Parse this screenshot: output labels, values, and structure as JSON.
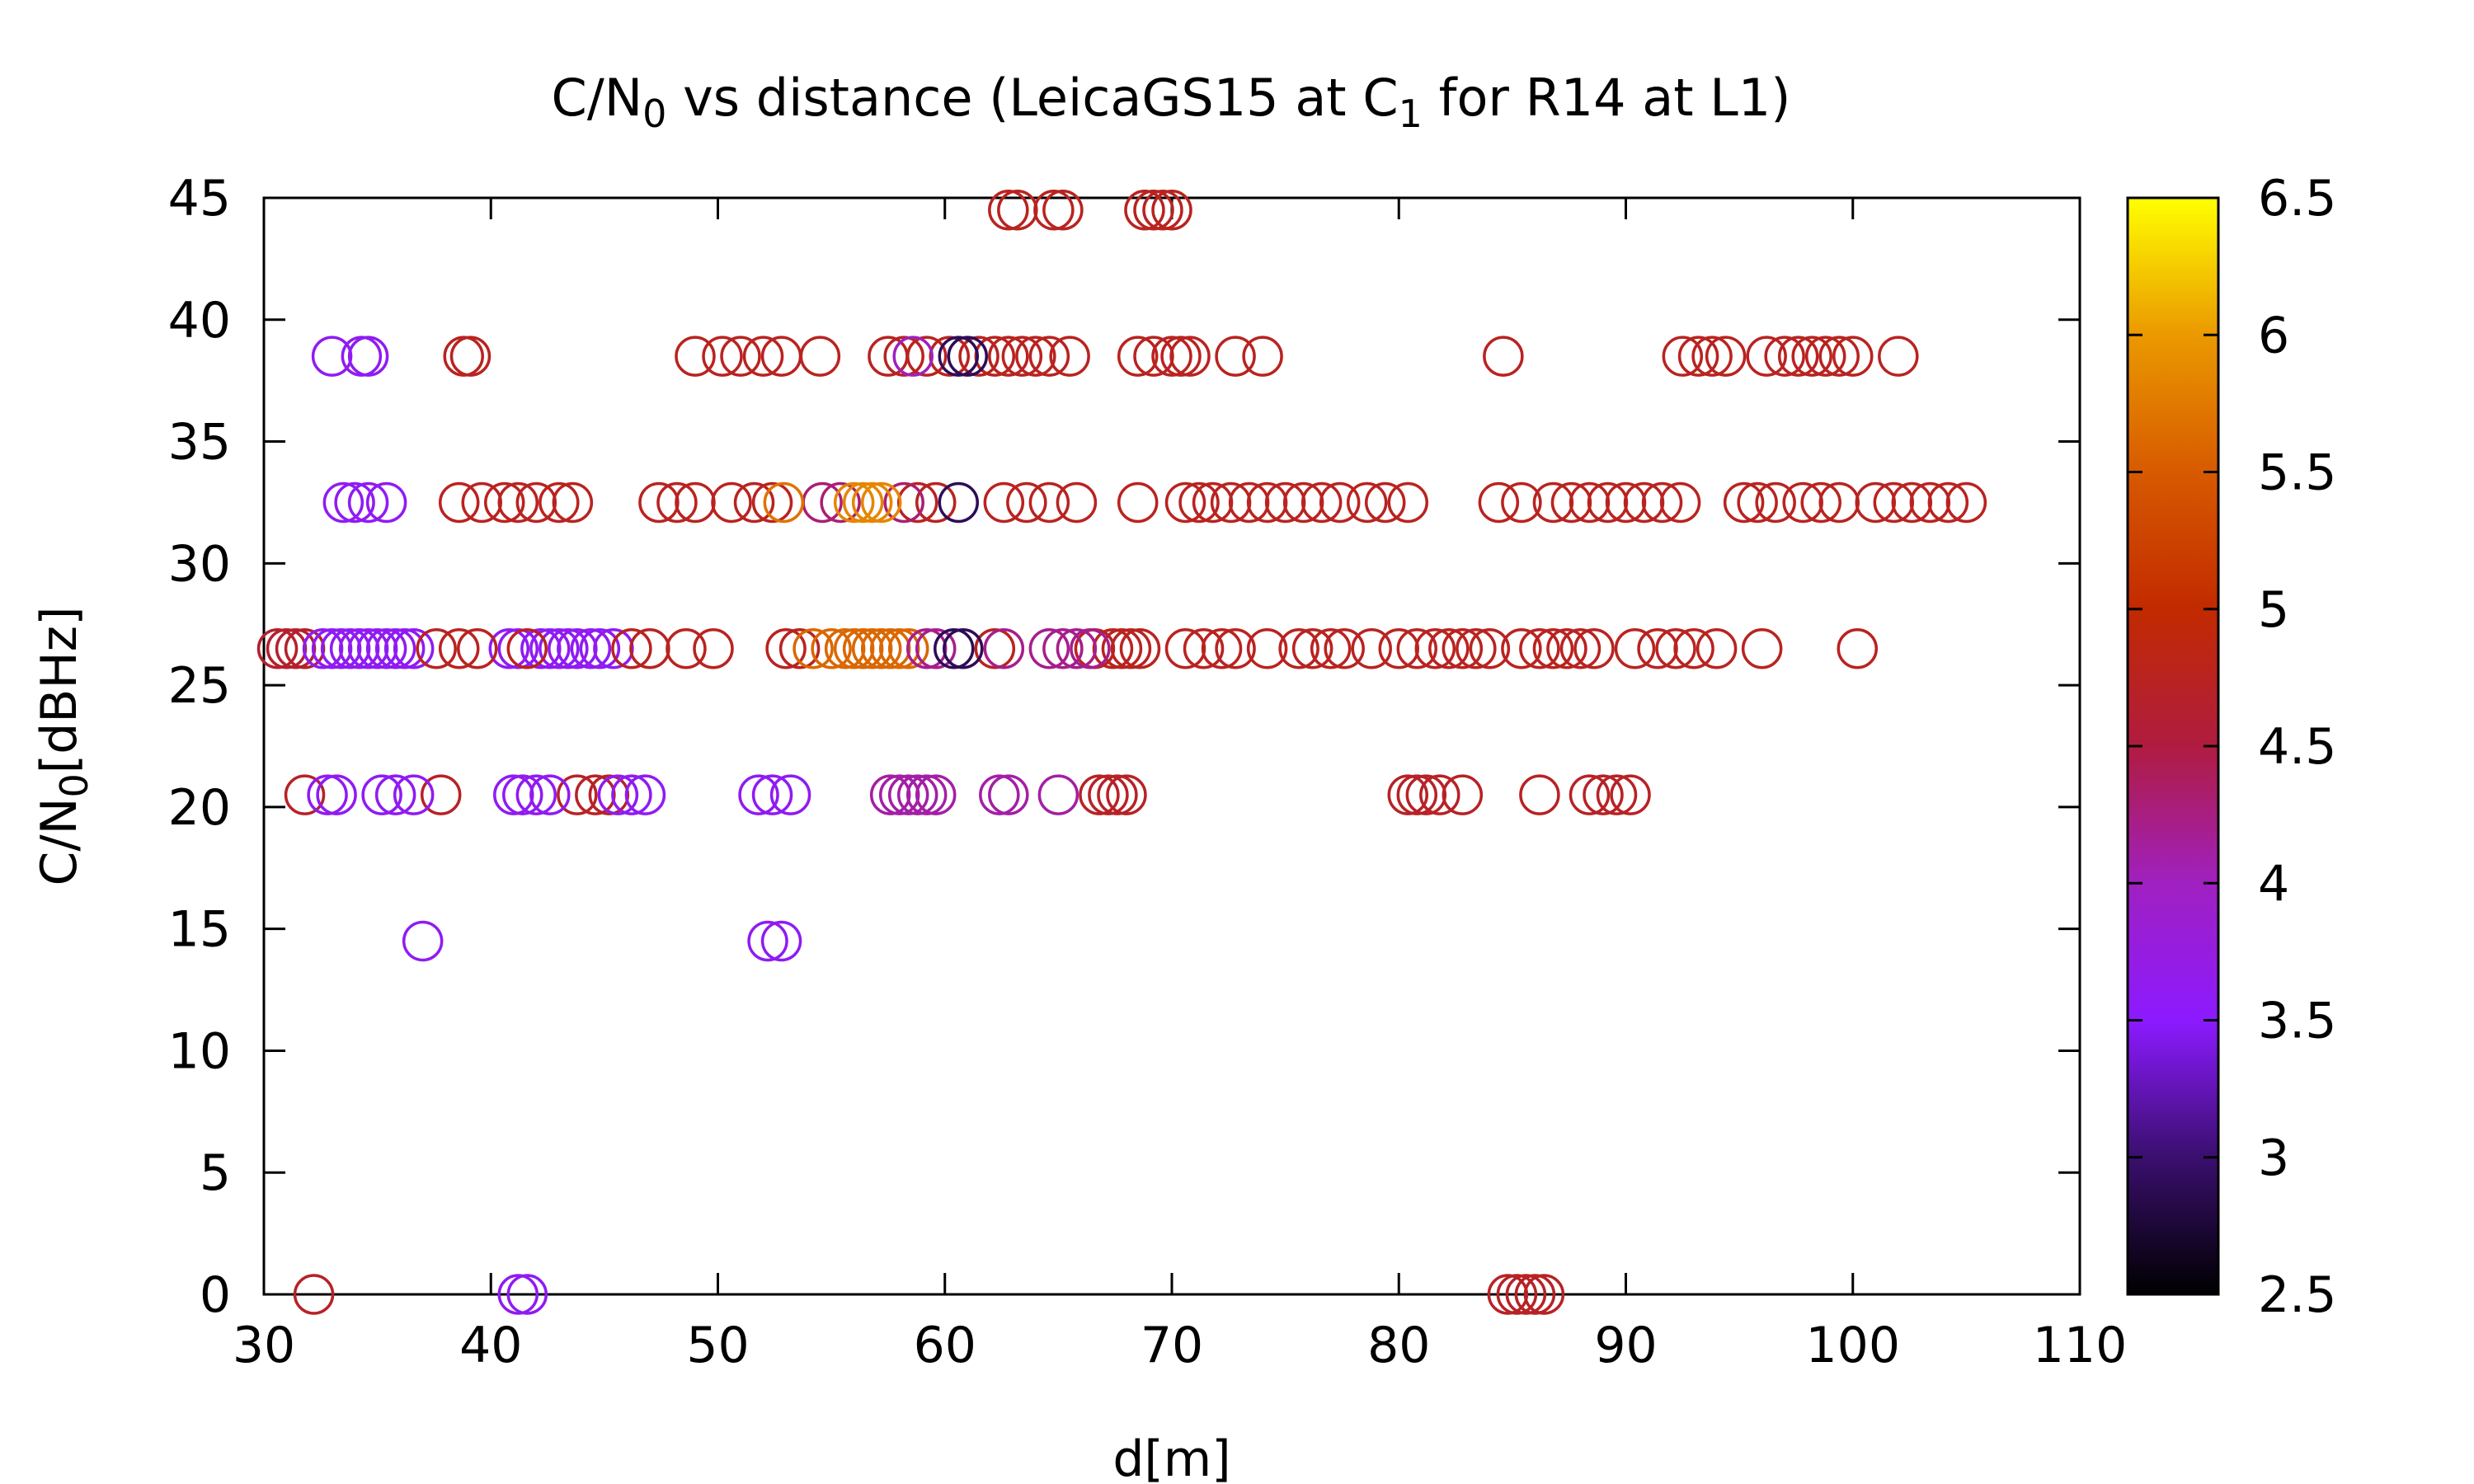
{
  "chart_data": {
    "type": "scatter",
    "title": "C/N",
    "title_sub": "0",
    "title_rest": " vs distance (LeicaGS15 at C",
    "title_sub2": "1",
    "title_rest2": " for R14 at L1)",
    "xlabel": "d[m]",
    "ylabel": "C/N",
    "ylabel_sub": "0",
    "ylabel_rest": "[dBHz]",
    "xlim": [
      30,
      110
    ],
    "ylim": [
      0,
      45
    ],
    "xticks": [
      "30",
      "40",
      "50",
      "60",
      "70",
      "80",
      "90",
      "100",
      "110"
    ],
    "yticks": [
      "0",
      "5",
      "10",
      "15",
      "20",
      "25",
      "30",
      "35",
      "40",
      "45"
    ],
    "colorbar": {
      "range": [
        2.5,
        6.5
      ],
      "ticks": [
        "2.5",
        "3",
        "3.5",
        "4",
        "4.5",
        "5",
        "5.5",
        "6",
        "6.5"
      ],
      "palette": "black-purple-red-orange-yellow"
    },
    "marker": "open-circle",
    "grid": false,
    "clusters": [
      {
        "y": 44.5,
        "c": 4.75,
        "x": [
          62.8,
          63.2,
          64.8,
          65.2,
          68.8,
          69.2,
          69.6,
          70.0
        ]
      },
      {
        "y": 38.5,
        "c": 3.6,
        "x": [
          33.0,
          34.3,
          34.6
        ]
      },
      {
        "y": 38.5,
        "c": 4.75,
        "x": [
          38.8,
          39.1,
          49.0,
          50.2,
          51.0,
          52.0,
          52.8,
          54.5,
          57.5,
          58.2,
          59.2,
          60.2,
          61.5,
          62.2,
          62.8,
          63.4,
          64.0,
          64.6,
          65.5,
          68.5,
          69.2,
          70.0,
          70.4,
          70.8,
          72.8,
          74.0,
          84.6,
          92.5,
          93.2,
          93.8,
          94.4,
          96.2,
          97.0,
          97.6,
          98.2,
          98.8,
          99.4,
          100.0,
          102.0
        ]
      },
      {
        "y": 38.5,
        "c": 4.0,
        "x": [
          58.6
        ]
      },
      {
        "y": 38.5,
        "c": 2.9,
        "x": [
          60.6,
          61.0
        ]
      },
      {
        "y": 32.5,
        "c": 3.6,
        "x": [
          33.5,
          34.0,
          34.6,
          35.4
        ]
      },
      {
        "y": 32.5,
        "c": 4.75,
        "x": [
          38.6,
          39.6,
          40.6,
          41.2,
          42.0,
          43.0,
          43.6,
          47.4,
          48.2,
          49.0,
          50.6,
          51.6,
          52.4,
          58.8,
          59.6,
          62.6,
          63.6,
          64.6,
          65.8,
          68.5,
          70.6,
          71.2,
          71.8,
          72.6,
          73.4,
          74.2,
          75.0,
          75.8,
          76.6,
          77.4,
          78.6,
          79.4,
          80.4,
          84.4,
          85.4,
          86.8,
          87.6,
          88.4,
          89.2,
          90.0,
          90.8,
          91.6,
          92.4,
          95.2,
          95.8,
          96.6,
          97.8,
          98.6,
          99.4,
          101.0,
          101.8,
          102.6,
          103.4,
          104.2,
          105.0
        ]
      },
      {
        "y": 32.5,
        "c": 4.3,
        "x": [
          54.6,
          55.4,
          58.2
        ]
      },
      {
        "y": 32.5,
        "c": 5.85,
        "x": [
          56.0,
          56.4,
          56.8,
          57.2
        ]
      },
      {
        "y": 32.5,
        "c": 2.9,
        "x": [
          60.6
        ]
      },
      {
        "y": 32.5,
        "c": 5.7,
        "x": [
          52.9
        ]
      },
      {
        "y": 26.5,
        "c": 4.65,
        "x": [
          30.6,
          31.0,
          31.4,
          31.8
        ]
      },
      {
        "y": 26.5,
        "c": 3.6,
        "x": [
          32.6,
          33.0,
          33.4,
          33.8,
          34.2,
          34.6,
          35.0,
          35.4,
          35.8,
          36.2,
          36.6,
          40.8,
          41.2,
          42.2,
          42.6,
          43.0,
          43.4,
          43.8,
          44.4,
          44.8,
          45.4
        ]
      },
      {
        "y": 26.5,
        "c": 4.75,
        "x": [
          37.6,
          38.6,
          39.4,
          41.6,
          46.2,
          47.0,
          48.6,
          49.8,
          53.0,
          53.6,
          62.2,
          66.6,
          67.4,
          67.8,
          68.2,
          68.6,
          70.6,
          71.4,
          72.2,
          72.8,
          74.2,
          75.6,
          76.2,
          77.0,
          77.6,
          78.8,
          80.0,
          80.8,
          81.6,
          82.2,
          82.8,
          83.4,
          84.0,
          85.4,
          86.2,
          86.8,
          87.4,
          88.0,
          88.6,
          90.4,
          91.4,
          92.2,
          93.0,
          94.0,
          96.0,
          100.2
        ]
      },
      {
        "y": 26.5,
        "c": 5.6,
        "x": [
          54.2,
          55.0,
          55.6,
          56.0,
          56.4,
          56.8,
          57.2,
          57.6,
          58.0,
          58.4
        ]
      },
      {
        "y": 26.5,
        "c": 4.2,
        "x": [
          59.2,
          59.6,
          62.6,
          64.6,
          65.2,
          65.8,
          66.4
        ]
      },
      {
        "y": 26.5,
        "c": 2.9,
        "x": [
          60.4,
          60.8
        ]
      },
      {
        "y": 20.5,
        "c": 4.7,
        "x": [
          31.8,
          37.8,
          43.8,
          44.6,
          45.2,
          66.8,
          67.2,
          67.6,
          68.0,
          80.4,
          80.8,
          81.2,
          81.8,
          82.8,
          86.2,
          88.4,
          89.0,
          89.6,
          90.2
        ]
      },
      {
        "y": 20.5,
        "c": 3.6,
        "x": [
          32.8,
          33.2,
          35.2,
          35.8,
          36.6,
          41.0,
          41.4,
          42.0,
          42.6,
          45.6,
          46.2,
          46.8,
          51.8,
          52.4,
          53.2
        ]
      },
      {
        "y": 20.5,
        "c": 4.1,
        "x": [
          57.6,
          58.0,
          58.4,
          58.8,
          59.2,
          59.6,
          62.4,
          62.8,
          65.0
        ]
      },
      {
        "y": 14.5,
        "c": 3.6,
        "x": [
          37.0,
          52.2,
          52.8
        ]
      },
      {
        "y": 0,
        "c": 4.7,
        "x": [
          32.2,
          84.8,
          85.2,
          85.6,
          86.0,
          86.4
        ]
      },
      {
        "y": 0,
        "c": 3.6,
        "x": [
          41.2,
          41.6
        ]
      }
    ]
  }
}
